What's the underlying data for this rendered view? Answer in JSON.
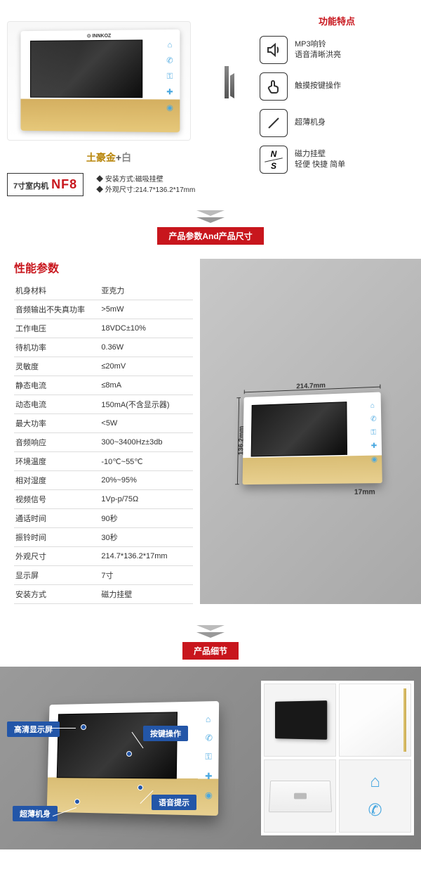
{
  "section1": {
    "brand": "⊙ INNKOZ",
    "color_gold": "土豪金",
    "color_plus": "+",
    "color_white": "白",
    "model_label": "7寸室内机",
    "model_code": "NF8",
    "install_line1": "◆ 安装方式:磁吸挂壁",
    "install_line2": "◆ 外观尺寸:214.7*136.2*17mm",
    "features_title": "功能特点",
    "features": [
      {
        "icon": "speaker",
        "line1": "MP3响铃",
        "line2": "语音清晰洪亮"
      },
      {
        "icon": "touch",
        "line1": "触摸按键操作",
        "line2": ""
      },
      {
        "icon": "slim",
        "line1": "超薄机身",
        "line2": ""
      },
      {
        "icon": "ns",
        "line1": "磁力挂壁",
        "line2": "轻便 快捷 简单"
      }
    ]
  },
  "sep1": {
    "title_a": "产品参数",
    "title_and": "And",
    "title_b": "产品尺寸"
  },
  "section2": {
    "spec_title": "性能参数",
    "specs": [
      [
        "机身材料",
        "亚克力"
      ],
      [
        "音频输出不失真功率",
        ">5mW"
      ],
      [
        "工作电压",
        "18VDC±10%"
      ],
      [
        "待机功率",
        "0.36W"
      ],
      [
        "灵敏度",
        "≤20mV"
      ],
      [
        "静态电流",
        "≤8mA"
      ],
      [
        "动态电流",
        "150mA(不含显示器)"
      ],
      [
        "最大功率",
        "<5W"
      ],
      [
        "音频响应",
        "300~3400Hz±3db"
      ],
      [
        "环境温度",
        "-10℃~55℃"
      ],
      [
        "相对湿度",
        "20%~95%"
      ],
      [
        "视频信号",
        "1Vp-p/75Ω"
      ],
      [
        "通话时间",
        "90秒"
      ],
      [
        "振铃时间",
        "30秒"
      ],
      [
        "外观尺寸",
        "214.7*136.2*17mm"
      ],
      [
        "显示屏",
        "7寸"
      ],
      [
        "安装方式",
        "磁力挂壁"
      ]
    ],
    "dim_w": "214.7mm",
    "dim_h": "136.2mm",
    "dim_d": "17mm"
  },
  "sep2": {
    "title": "产品细节"
  },
  "section3": {
    "callouts": {
      "screen": "高清显示屏",
      "slim": "超薄机身",
      "buttons": "按键操作",
      "voice": "语音提示"
    }
  },
  "icons": {
    "home": "⌂",
    "phone": "✆",
    "unlock": "⚿",
    "key": "✚",
    "monitor": "◉"
  },
  "colors": {
    "accent": "#c8161d",
    "icon_blue": "#4aa8e0",
    "callout_bg": "#2356a8",
    "gold1": "#d4af60",
    "gold2": "#e6c87a"
  }
}
